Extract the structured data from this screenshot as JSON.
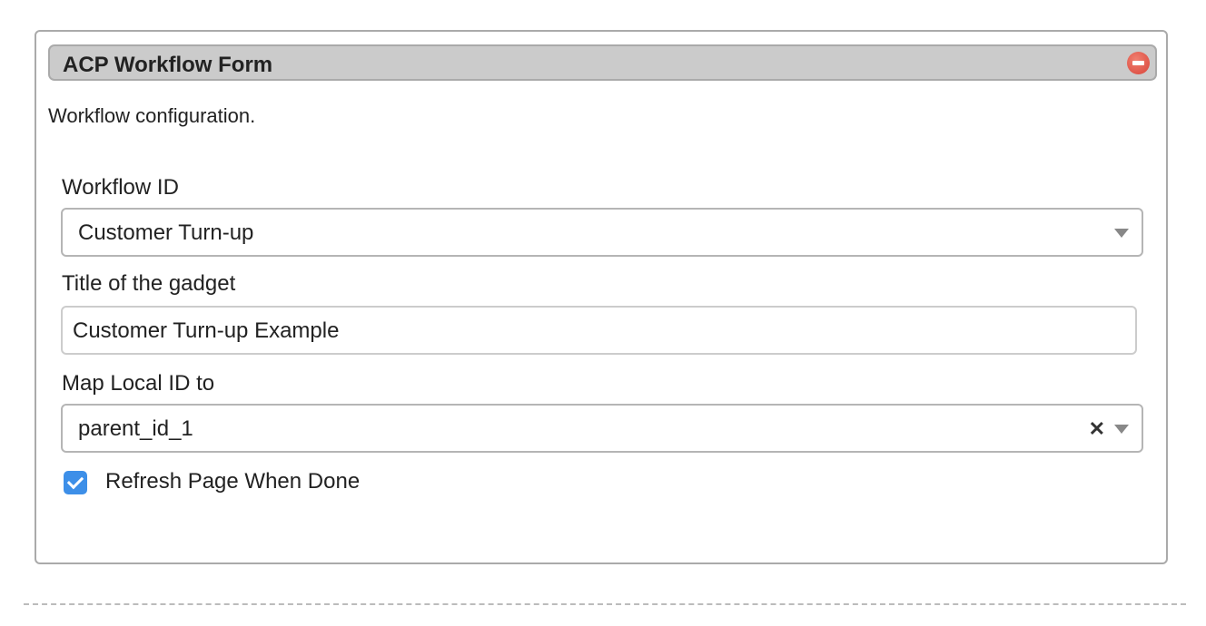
{
  "panel": {
    "title": "ACP Workflow Form",
    "close_icon": "remove-circle-icon",
    "description": "Workflow configuration.",
    "fields": {
      "workflow_id": {
        "label": "Workflow ID",
        "value": "Customer Turn-up"
      },
      "gadget_title": {
        "label": "Title of the gadget",
        "value": "Customer Turn-up Example"
      },
      "map_local_id": {
        "label": "Map Local ID to",
        "value": "parent_id_1",
        "clear_icon": "clear-x-icon"
      },
      "refresh": {
        "label": "Refresh Page When Done",
        "checked": true
      }
    },
    "colors": {
      "checkbox": "#3d8fe8",
      "close": "#d9443a",
      "header": "#cbcbcb"
    }
  }
}
